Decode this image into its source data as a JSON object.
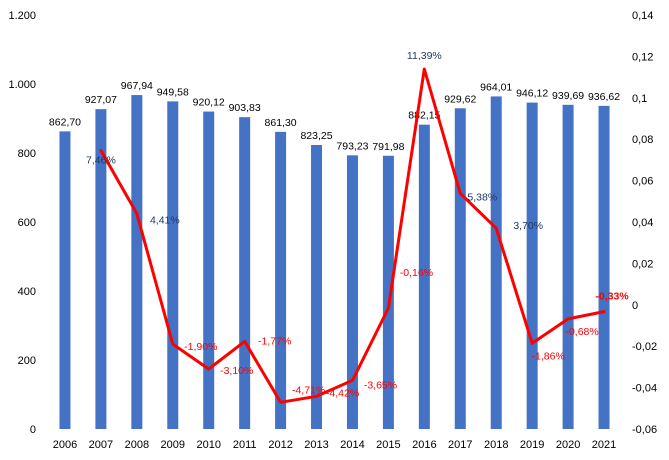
{
  "chart_data": {
    "type": "bar+line",
    "title": "",
    "xlabel": "",
    "ylabel": "",
    "categories": [
      "2006",
      "2007",
      "2008",
      "2009",
      "2010",
      "2011",
      "2012",
      "2013",
      "2014",
      "2015",
      "2016",
      "2017",
      "2018",
      "2019",
      "2020",
      "2021"
    ],
    "series": [
      {
        "type": "bar",
        "axis": "left",
        "color": "#4472C4",
        "values": [
          862.7,
          927.07,
          967.94,
          949.58,
          920.12,
          903.83,
          861.3,
          823.25,
          793.23,
          791.98,
          882.15,
          929.62,
          964.01,
          946.12,
          939.69,
          936.62
        ],
        "labels": [
          "862,70",
          "927,07",
          "967,94",
          "949,58",
          "920,12",
          "903,83",
          "861,30",
          "823,25",
          "793,23",
          "791,98",
          "882,15",
          "929,62",
          "964,01",
          "946,12",
          "939,69",
          "936,62"
        ]
      },
      {
        "type": "line",
        "axis": "right",
        "color": "#FF0000",
        "values": [
          null,
          0.0746,
          0.0441,
          -0.019,
          -0.031,
          -0.0177,
          -0.0471,
          -0.0442,
          -0.0365,
          -0.0016,
          0.1139,
          0.0538,
          0.037,
          -0.0186,
          -0.0068,
          -0.0033
        ],
        "labels": [
          "",
          "7,46%",
          "4,41%",
          "-1,90%",
          "-3,10%",
          "-1,77%",
          "-4,71%",
          "-4,42%",
          "-3,65%",
          "-0,16%",
          "11,39%",
          "5,38%",
          "3,70%",
          "-1,86%",
          "-0,68%",
          "-0,33%"
        ],
        "label_colors": [
          "",
          "#1F3864",
          "#1F3864",
          "#FF0000",
          "#FF0000",
          "#FF0000",
          "#FF0000",
          "#FF0000",
          "#FF0000",
          "#FF0000",
          "#1F3864",
          "#1F3864",
          "#1F3864",
          "#FF0000",
          "#FF0000",
          "#FF0000"
        ]
      }
    ],
    "y_left": {
      "ylim": [
        0,
        1200
      ],
      "ticks": [
        0,
        200,
        400,
        600,
        800,
        1000,
        1200
      ],
      "tick_labels": [
        "0",
        "200",
        "400",
        "600",
        "800",
        "1.000",
        "1.200"
      ]
    },
    "y_right": {
      "ylim": [
        -0.06,
        0.14
      ],
      "ticks": [
        -0.06,
        -0.04,
        -0.02,
        0,
        0.02,
        0.04,
        0.06,
        0.08,
        0.1,
        0.12,
        0.14
      ],
      "tick_labels": [
        "-0,06",
        "-0,04",
        "-0,02",
        "0",
        "0,02",
        "0,04",
        "0,06",
        "0,08",
        "0,1",
        "0,12",
        "0,14"
      ]
    },
    "grid": false,
    "legend": "none"
  }
}
